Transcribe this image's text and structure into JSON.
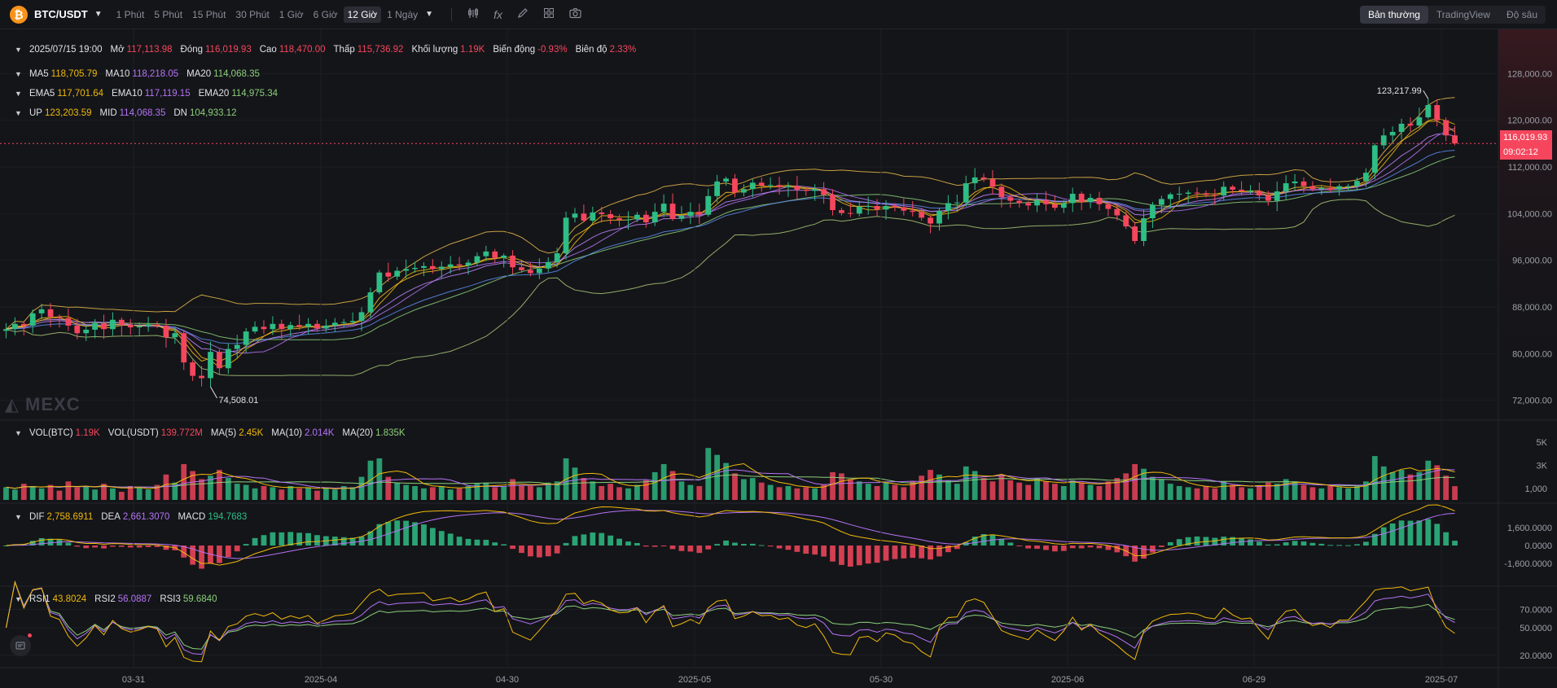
{
  "toolbar": {
    "coin_symbol": "₿",
    "pair": "BTC/USDT",
    "intervals": [
      "1 Phút",
      "5 Phút",
      "15 Phút",
      "30 Phút",
      "1 Giờ",
      "6 Giờ",
      "12 Giờ",
      "1 Ngày"
    ],
    "active_interval": "12 Giờ",
    "views": [
      "Bản thường",
      "TradingView",
      "Độ sâu"
    ],
    "active_view": "Bản thường"
  },
  "ohlc": {
    "date": "2025/07/15 19:00",
    "open_label": "Mở",
    "open": "117,113.98",
    "close_label": "Đóng",
    "close": "116,019.93",
    "high_label": "Cao",
    "high": "118,470.00",
    "low_label": "Thấp",
    "low": "115,736.92",
    "volume_label": "Khối lượng",
    "volume": "1.19K",
    "change_label": "Biến động",
    "change": "-0.93%",
    "amplitude_label": "Biên độ",
    "amplitude": "2.33%"
  },
  "ma": {
    "ma5_label": "MA5",
    "ma5": "118,705.79",
    "ma10_label": "MA10",
    "ma10": "118,218.05",
    "ma20_label": "MA20",
    "ma20": "114,068.35"
  },
  "ema": {
    "ema5_label": "EMA5",
    "ema5": "117,701.64",
    "ema10_label": "EMA10",
    "ema10": "117,119.15",
    "ema20_label": "EMA20",
    "ema20": "114,975.34"
  },
  "boll": {
    "up_label": "UP",
    "up": "123,203.59",
    "mid_label": "MID",
    "mid": "114,068.35",
    "dn_label": "DN",
    "dn": "104,933.12"
  },
  "volume_legend": {
    "vol_btc_label": "VOL(BTC)",
    "vol_btc": "1.19K",
    "vol_usdt_label": "VOL(USDT)",
    "vol_usdt": "139.772M",
    "ma5_label": "MA(5)",
    "ma5": "2.45K",
    "ma10_label": "MA(10)",
    "ma10": "2.014K",
    "ma20_label": "MA(20)",
    "ma20": "1.835K"
  },
  "macd_legend": {
    "dif_label": "DIF",
    "dif": "2,758.6911",
    "dea_label": "DEA",
    "dea": "2,661.3070",
    "macd_label": "MACD",
    "macd": "194.7683"
  },
  "rsi_legend": {
    "rsi1_label": "RSI1",
    "rsi1": "43.8024",
    "rsi2_label": "RSI2",
    "rsi2": "56.0887",
    "rsi3_label": "RSI3",
    "rsi3": "59.6840"
  },
  "price_axis": [
    "128,000.00",
    "120,000.00",
    "112,000.00",
    "104,000.00",
    "96,000.00",
    "88,000.00",
    "80,000.00",
    "72,000.00"
  ],
  "volume_axis": [
    "5K",
    "3K",
    "1,000"
  ],
  "macd_axis": [
    "1,600.0000",
    "0.0000",
    "-1,600.0000"
  ],
  "rsi_axis": [
    "70.0000",
    "50.0000",
    "20.0000"
  ],
  "time_axis": [
    "03-31",
    "2025-04",
    "04-30",
    "2025-05",
    "05-30",
    "2025-06",
    "06-29",
    "2025-07"
  ],
  "last_price": "116,019.93",
  "countdown": "09:02:12",
  "high_marker": "123,217.99",
  "low_marker": "74,508.01",
  "watermark": "MEXC",
  "colors": {
    "up": "#2ebd85",
    "down": "#f6465d",
    "ma5": "#f0b90b",
    "ma10": "#b474f5",
    "ma20": "#8bcf7a"
  },
  "chart_data": {
    "type": "candlestick",
    "price_range": [
      70000,
      130000
    ],
    "closes": [
      84200,
      85100,
      84800,
      86900,
      87600,
      86300,
      86100,
      84800,
      83500,
      84100,
      85200,
      84200,
      85800,
      84900,
      84500,
      84700,
      85000,
      84800,
      82800,
      83500,
      78500,
      76200,
      75800,
      80300,
      77500,
      80800,
      81500,
      83800,
      84600,
      84200,
      85100,
      84200,
      84900,
      84600,
      85100,
      84300,
      84800,
      85300,
      85400,
      85600,
      87100,
      90500,
      93900,
      93200,
      94200,
      94500,
      94700,
      95000,
      94500,
      94900,
      95300,
      95100,
      95600,
      96700,
      97500,
      96400,
      96800,
      94800,
      94300,
      93800,
      94600,
      95700,
      97200,
      103300,
      104000,
      102800,
      104200,
      103900,
      103200,
      102900,
      103000,
      103800,
      102500,
      104300,
      105700,
      103100,
      103600,
      104300,
      103800,
      107000,
      109500,
      110000,
      107600,
      108200,
      109300,
      108800,
      108900,
      108500,
      108700,
      108100,
      107900,
      108200,
      107200,
      104600,
      104100,
      104000,
      105200,
      105300,
      104700,
      105300,
      105100,
      104500,
      104300,
      103300,
      102300,
      104500,
      105800,
      105900,
      109200,
      110200,
      109900,
      108600,
      106800,
      106200,
      105800,
      105400,
      106300,
      105600,
      105000,
      105800,
      107400,
      106000,
      106700,
      105600,
      104800,
      103700,
      101800,
      99300,
      103200,
      105500,
      106500,
      107300,
      107400,
      107600,
      107500,
      107200,
      107100,
      108600,
      108100,
      107800,
      107900,
      107100,
      106200,
      107800,
      109200,
      109500,
      108700,
      108200,
      108400,
      108100,
      108700,
      108700,
      109600,
      111000,
      115700,
      117400,
      118000,
      119400,
      119100,
      120500,
      122600,
      120000,
      117400,
      116020
    ],
    "volume_thousands": [
      1.1,
      0.9,
      1.4,
      1.2,
      1.0,
      1.3,
      0.8,
      1.6,
      1.1,
      1.2,
      0.9,
      1.4,
      1.0,
      0.7,
      1.2,
      1.1,
      0.9,
      1.3,
      2.2,
      1.5,
      3.1,
      2.5,
      1.8,
      2.1,
      2.6,
      1.9,
      1.4,
      1.3,
      1.0,
      1.2,
      1.1,
      0.9,
      1.2,
      1.0,
      1.1,
      0.8,
      1.0,
      0.9,
      1.2,
      1.1,
      2.0,
      3.4,
      3.6,
      2.0,
      1.5,
      1.3,
      1.2,
      1.0,
      1.1,
      1.2,
      0.9,
      1.0,
      1.2,
      1.4,
      1.5,
      1.1,
      1.2,
      1.8,
      1.3,
      1.2,
      1.1,
      1.5,
      1.6,
      3.6,
      2.8,
      1.9,
      1.6,
      1.2,
      1.4,
      1.1,
      1.0,
      1.3,
      1.7,
      2.4,
      3.1,
      2.5,
      1.6,
      1.3,
      1.2,
      4.5,
      3.9,
      3.2,
      2.3,
      1.8,
      1.9,
      1.5,
      1.3,
      1.1,
      1.2,
      1.0,
      1.1,
      1.0,
      1.3,
      2.4,
      2.3,
      1.8,
      1.6,
      1.4,
      1.2,
      1.5,
      1.3,
      1.1,
      1.6,
      2.1,
      2.6,
      2.2,
      1.7,
      1.4,
      2.9,
      2.5,
      1.9,
      1.6,
      2.2,
      1.7,
      1.5,
      1.3,
      1.9,
      1.6,
      1.4,
      1.2,
      1.7,
      1.5,
      1.3,
      1.2,
      1.6,
      1.9,
      2.3,
      3.1,
      2.7,
      2.0,
      1.8,
      1.4,
      1.2,
      1.1,
      1.0,
      1.2,
      1.0,
      1.6,
      1.3,
      1.1,
      1.0,
      1.2,
      1.5,
      1.4,
      1.8,
      1.6,
      1.3,
      1.1,
      1.0,
      1.2,
      1.1,
      1.0,
      1.2,
      1.6,
      3.8,
      2.9,
      2.4,
      2.6,
      2.2,
      2.4,
      3.4,
      3.0,
      2.1,
      1.19
    ]
  }
}
